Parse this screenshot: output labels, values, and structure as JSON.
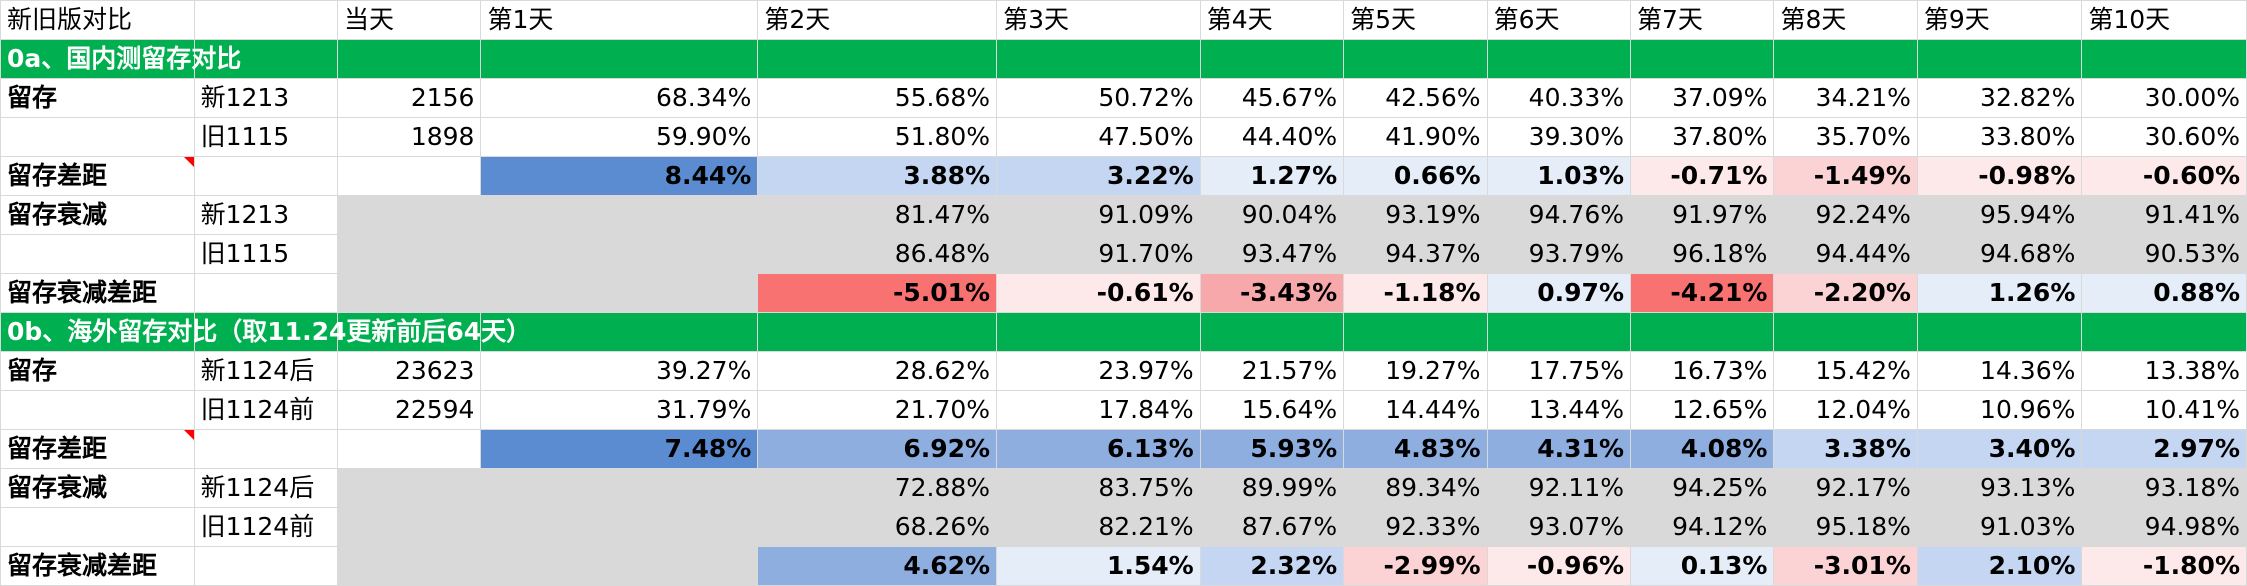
{
  "columns": [
    193,
    143,
    143,
    276,
    238,
    203,
    143,
    143,
    143,
    143,
    143,
    164,
    164
  ],
  "header": [
    "新旧版对比",
    "",
    "当天",
    "第1天",
    "第2天",
    "第3天",
    "第4天",
    "第5天",
    "第6天",
    "第7天",
    "第8天",
    "第9天",
    "第10天"
  ],
  "colors": {
    "section_green": "#00b050",
    "label_red": "#ff0000",
    "gray_fill": "#d9d9d9",
    "blue_dark": "#5b8bd0",
    "blue_mid": "#8eaee0",
    "blue_light": "#c4d6f1",
    "blue_pale": "#e5edf9",
    "red_strong": "#f87272",
    "red_mid": "#f7a8ab",
    "red_light": "#fbd3d5",
    "red_pale": "#fde9ea"
  },
  "rows": [
    {
      "type": "section",
      "label": "0a、国内测留存对比"
    },
    {
      "type": "data",
      "label": "留存",
      "label_style": "bold",
      "version": "新1213",
      "count": "2156",
      "cells": [
        {
          "v": "68.34%"
        },
        {
          "v": "55.68%"
        },
        {
          "v": "50.72%"
        },
        {
          "v": "45.67%"
        },
        {
          "v": "42.56%"
        },
        {
          "v": "40.33%"
        },
        {
          "v": "37.09%"
        },
        {
          "v": "34.21%"
        },
        {
          "v": "32.82%"
        },
        {
          "v": "30.00%"
        }
      ]
    },
    {
      "type": "data",
      "label": "",
      "version": "旧1115",
      "count": "1898",
      "cells": [
        {
          "v": "59.90%"
        },
        {
          "v": "51.80%"
        },
        {
          "v": "47.50%"
        },
        {
          "v": "44.40%"
        },
        {
          "v": "41.90%"
        },
        {
          "v": "39.30%"
        },
        {
          "v": "37.80%"
        },
        {
          "v": "35.70%"
        },
        {
          "v": "33.80%"
        },
        {
          "v": "30.60%"
        }
      ]
    },
    {
      "type": "diff",
      "label": "留存差距",
      "label_style": "red",
      "corner": true,
      "version": "",
      "count": "",
      "cells": [
        {
          "v": "8.44%",
          "fill": "blue_dark"
        },
        {
          "v": "3.88%",
          "fill": "blue_light"
        },
        {
          "v": "3.22%",
          "fill": "blue_light"
        },
        {
          "v": "1.27%",
          "fill": "blue_pale"
        },
        {
          "v": "0.66%",
          "fill": "blue_pale"
        },
        {
          "v": "1.03%",
          "fill": "blue_pale"
        },
        {
          "v": "-0.71%",
          "fill": "red_pale"
        },
        {
          "v": "-1.49%",
          "fill": "red_light"
        },
        {
          "v": "-0.98%",
          "fill": "red_pale"
        },
        {
          "v": "-0.60%",
          "fill": "red_pale"
        }
      ]
    },
    {
      "type": "data",
      "label": "留存衰减",
      "label_style": "bold",
      "gray": true,
      "version": "新1213",
      "count": "",
      "cells": [
        {
          "v": ""
        },
        {
          "v": "81.47%"
        },
        {
          "v": "91.09%"
        },
        {
          "v": "90.04%"
        },
        {
          "v": "93.19%"
        },
        {
          "v": "94.76%"
        },
        {
          "v": "91.97%"
        },
        {
          "v": "92.24%"
        },
        {
          "v": "95.94%"
        },
        {
          "v": "91.41%"
        }
      ]
    },
    {
      "type": "data",
      "label": "",
      "gray": true,
      "version": "旧1115",
      "count": "",
      "cells": [
        {
          "v": ""
        },
        {
          "v": "86.48%"
        },
        {
          "v": "91.70%"
        },
        {
          "v": "93.47%"
        },
        {
          "v": "94.37%"
        },
        {
          "v": "93.79%"
        },
        {
          "v": "96.18%"
        },
        {
          "v": "94.44%"
        },
        {
          "v": "94.68%"
        },
        {
          "v": "90.53%"
        }
      ]
    },
    {
      "type": "diff",
      "label": "留存衰减差距",
      "label_style": "red",
      "gray": true,
      "version": "",
      "count": "",
      "cells": [
        {
          "v": "",
          "fill": "gray"
        },
        {
          "v": "-5.01%",
          "fill": "red_strong"
        },
        {
          "v": "-0.61%",
          "fill": "red_pale"
        },
        {
          "v": "-3.43%",
          "fill": "red_mid"
        },
        {
          "v": "-1.18%",
          "fill": "red_pale"
        },
        {
          "v": "0.97%",
          "fill": "blue_pale"
        },
        {
          "v": "-4.21%",
          "fill": "red_strong"
        },
        {
          "v": "-2.20%",
          "fill": "red_light"
        },
        {
          "v": "1.26%",
          "fill": "blue_pale"
        },
        {
          "v": "0.88%",
          "fill": "blue_pale"
        }
      ]
    },
    {
      "type": "section",
      "label": "0b、海外留存对比（取11.24更新前后64天）"
    },
    {
      "type": "data",
      "label": "留存",
      "label_style": "bold",
      "version": "新1124后",
      "count": "23623",
      "cells": [
        {
          "v": "39.27%"
        },
        {
          "v": "28.62%"
        },
        {
          "v": "23.97%"
        },
        {
          "v": "21.57%"
        },
        {
          "v": "19.27%"
        },
        {
          "v": "17.75%"
        },
        {
          "v": "16.73%"
        },
        {
          "v": "15.42%"
        },
        {
          "v": "14.36%"
        },
        {
          "v": "13.38%"
        }
      ]
    },
    {
      "type": "data",
      "label": "",
      "version": "旧1124前",
      "count": "22594",
      "cells": [
        {
          "v": "31.79%"
        },
        {
          "v": "21.70%"
        },
        {
          "v": "17.84%"
        },
        {
          "v": "15.64%"
        },
        {
          "v": "14.44%"
        },
        {
          "v": "13.44%"
        },
        {
          "v": "12.65%"
        },
        {
          "v": "12.04%"
        },
        {
          "v": "10.96%"
        },
        {
          "v": "10.41%"
        }
      ]
    },
    {
      "type": "diff",
      "label": "留存差距",
      "label_style": "red",
      "corner": true,
      "version": "",
      "count": "",
      "cells": [
        {
          "v": "7.48%",
          "fill": "blue_dark"
        },
        {
          "v": "6.92%",
          "fill": "blue_mid"
        },
        {
          "v": "6.13%",
          "fill": "blue_mid"
        },
        {
          "v": "5.93%",
          "fill": "blue_mid"
        },
        {
          "v": "4.83%",
          "fill": "blue_mid"
        },
        {
          "v": "4.31%",
          "fill": "blue_mid"
        },
        {
          "v": "4.08%",
          "fill": "blue_mid"
        },
        {
          "v": "3.38%",
          "fill": "blue_light"
        },
        {
          "v": "3.40%",
          "fill": "blue_light"
        },
        {
          "v": "2.97%",
          "fill": "blue_light"
        }
      ]
    },
    {
      "type": "data",
      "label": "留存衰减",
      "label_style": "bold",
      "gray": true,
      "version": "新1124后",
      "count": "",
      "cells": [
        {
          "v": ""
        },
        {
          "v": "72.88%"
        },
        {
          "v": "83.75%"
        },
        {
          "v": "89.99%"
        },
        {
          "v": "89.34%"
        },
        {
          "v": "92.11%"
        },
        {
          "v": "94.25%"
        },
        {
          "v": "92.17%"
        },
        {
          "v": "93.13%"
        },
        {
          "v": "93.18%"
        }
      ]
    },
    {
      "type": "data",
      "label": "",
      "gray": true,
      "version": "旧1124前",
      "count": "",
      "cells": [
        {
          "v": ""
        },
        {
          "v": "68.26%"
        },
        {
          "v": "82.21%"
        },
        {
          "v": "87.67%"
        },
        {
          "v": "92.33%"
        },
        {
          "v": "93.07%"
        },
        {
          "v": "94.12%"
        },
        {
          "v": "95.18%"
        },
        {
          "v": "91.03%"
        },
        {
          "v": "94.98%"
        }
      ]
    },
    {
      "type": "diff",
      "label": "留存衰减差距",
      "label_style": "red",
      "gray": true,
      "version": "",
      "count": "",
      "cells": [
        {
          "v": "",
          "fill": "gray"
        },
        {
          "v": "4.62%",
          "fill": "blue_mid"
        },
        {
          "v": "1.54%",
          "fill": "blue_pale"
        },
        {
          "v": "2.32%",
          "fill": "blue_light"
        },
        {
          "v": "-2.99%",
          "fill": "red_light"
        },
        {
          "v": "-0.96%",
          "fill": "red_pale"
        },
        {
          "v": "0.13%",
          "fill": "blue_pale"
        },
        {
          "v": "-3.01%",
          "fill": "red_light"
        },
        {
          "v": "2.10%",
          "fill": "blue_light"
        },
        {
          "v": "-1.80%",
          "fill": "red_pale"
        }
      ]
    }
  ]
}
